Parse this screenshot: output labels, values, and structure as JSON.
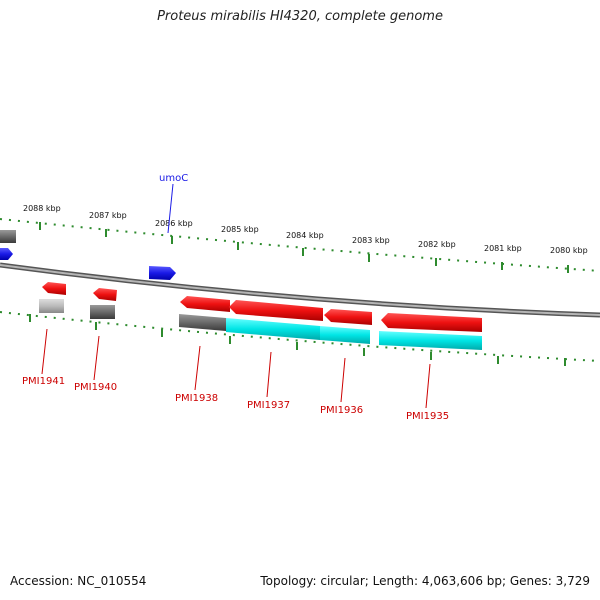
{
  "title": "Proteus mirabilis HI4320, complete genome",
  "accession": "Accession: NC_010554",
  "summary": "Topology: circular; Length: 4,063,606 bp; Genes: 3,729",
  "colors": {
    "backbone": "#8a8a8a",
    "scale_ticks": "#2e8b2e",
    "gene_red": "#ee1111",
    "gene_blue": "#1a1ae6",
    "gene_cyan": "#00e5e5",
    "gene_gray": "#6a6a6a",
    "label_red": "#cc0000"
  },
  "scale_labels": [
    "2088 kbp",
    "2087 kbp",
    "2086 kbp",
    "2085 kbp",
    "2084 kbp",
    "2083 kbp",
    "2082 kbp",
    "2081 kbp",
    "2080 kbp"
  ],
  "features": [
    {
      "id": "umoC",
      "label": "umoC",
      "color": "blue"
    }
  ],
  "genes": [
    {
      "label": "PMI1941"
    },
    {
      "label": "PMI1940"
    },
    {
      "label": "PMI1938"
    },
    {
      "label": "PMI1937"
    },
    {
      "label": "PMI1936"
    },
    {
      "label": "PMI1935"
    }
  ]
}
